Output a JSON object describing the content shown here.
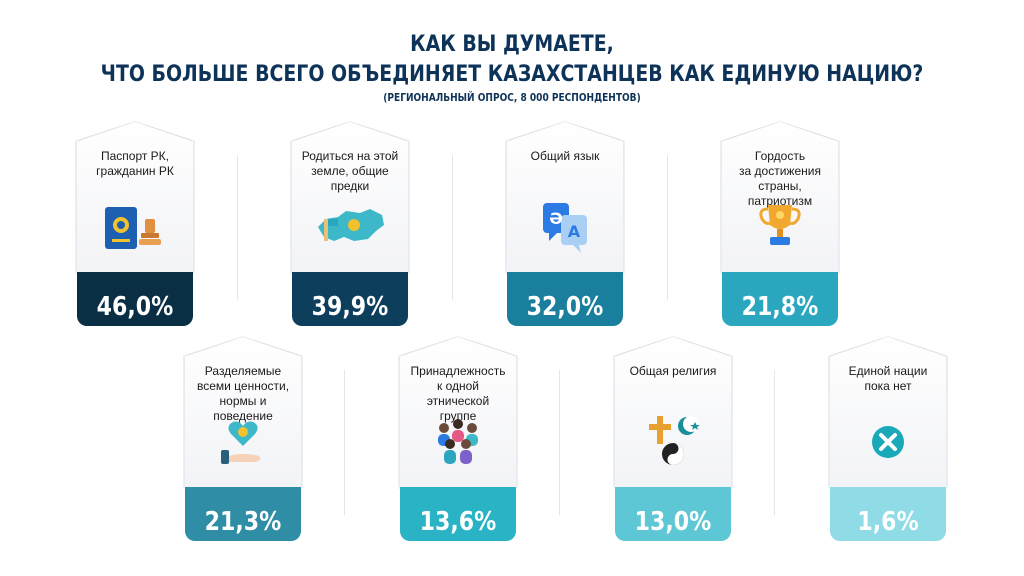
{
  "header": {
    "title_line1": "КАК ВЫ ДУМАЕТЕ,",
    "title_line2": "ЧТО БОЛЬШЕ ВСЕГО ОБЪЕДИНЯЕТ КАЗАХСТАНЦЕВ КАК ЕДИНУЮ НАЦИЮ?",
    "subtitle": "(РЕГИОНАЛЬНЫЙ ОПРОС,  8 000 РЕСПОНДЕНТОВ)"
  },
  "cards": [
    {
      "label": "Паспорт РК,\nгражданин РК",
      "value": "46,0%",
      "color": "#0a2f45",
      "icon": "passport-stamp-icon"
    },
    {
      "label": "Родиться на этой\nземле, общие\nпредки",
      "value": "39,9%",
      "color": "#0d3f5c",
      "icon": "kazakhstan-map-icon"
    },
    {
      "label": "Общий язык",
      "value": "32,0%",
      "color": "#1a7f9c",
      "icon": "language-icon"
    },
    {
      "label": "Гордость\nза достижения\nстраны, патриотизм",
      "value": "21,8%",
      "color": "#2aa6bf",
      "icon": "trophy-icon"
    },
    {
      "label": "Разделяемые\nвсеми ценности,\nнормы и поведение",
      "value": "21,3%",
      "color": "#2f8ea6",
      "icon": "heart-hand-icon"
    },
    {
      "label": "Принадлежность\nк одной этнической\nгруппе",
      "value": "13,6%",
      "color": "#2ab3c5",
      "icon": "people-group-icon"
    },
    {
      "label": "Общая религия",
      "value": "13,0%",
      "color": "#5ec7d5",
      "icon": "religion-symbols-icon"
    },
    {
      "label": "Единой нации\nпока нет",
      "value": "1,6%",
      "color": "#8fdbe6",
      "icon": "cross-circle-icon"
    }
  ]
}
